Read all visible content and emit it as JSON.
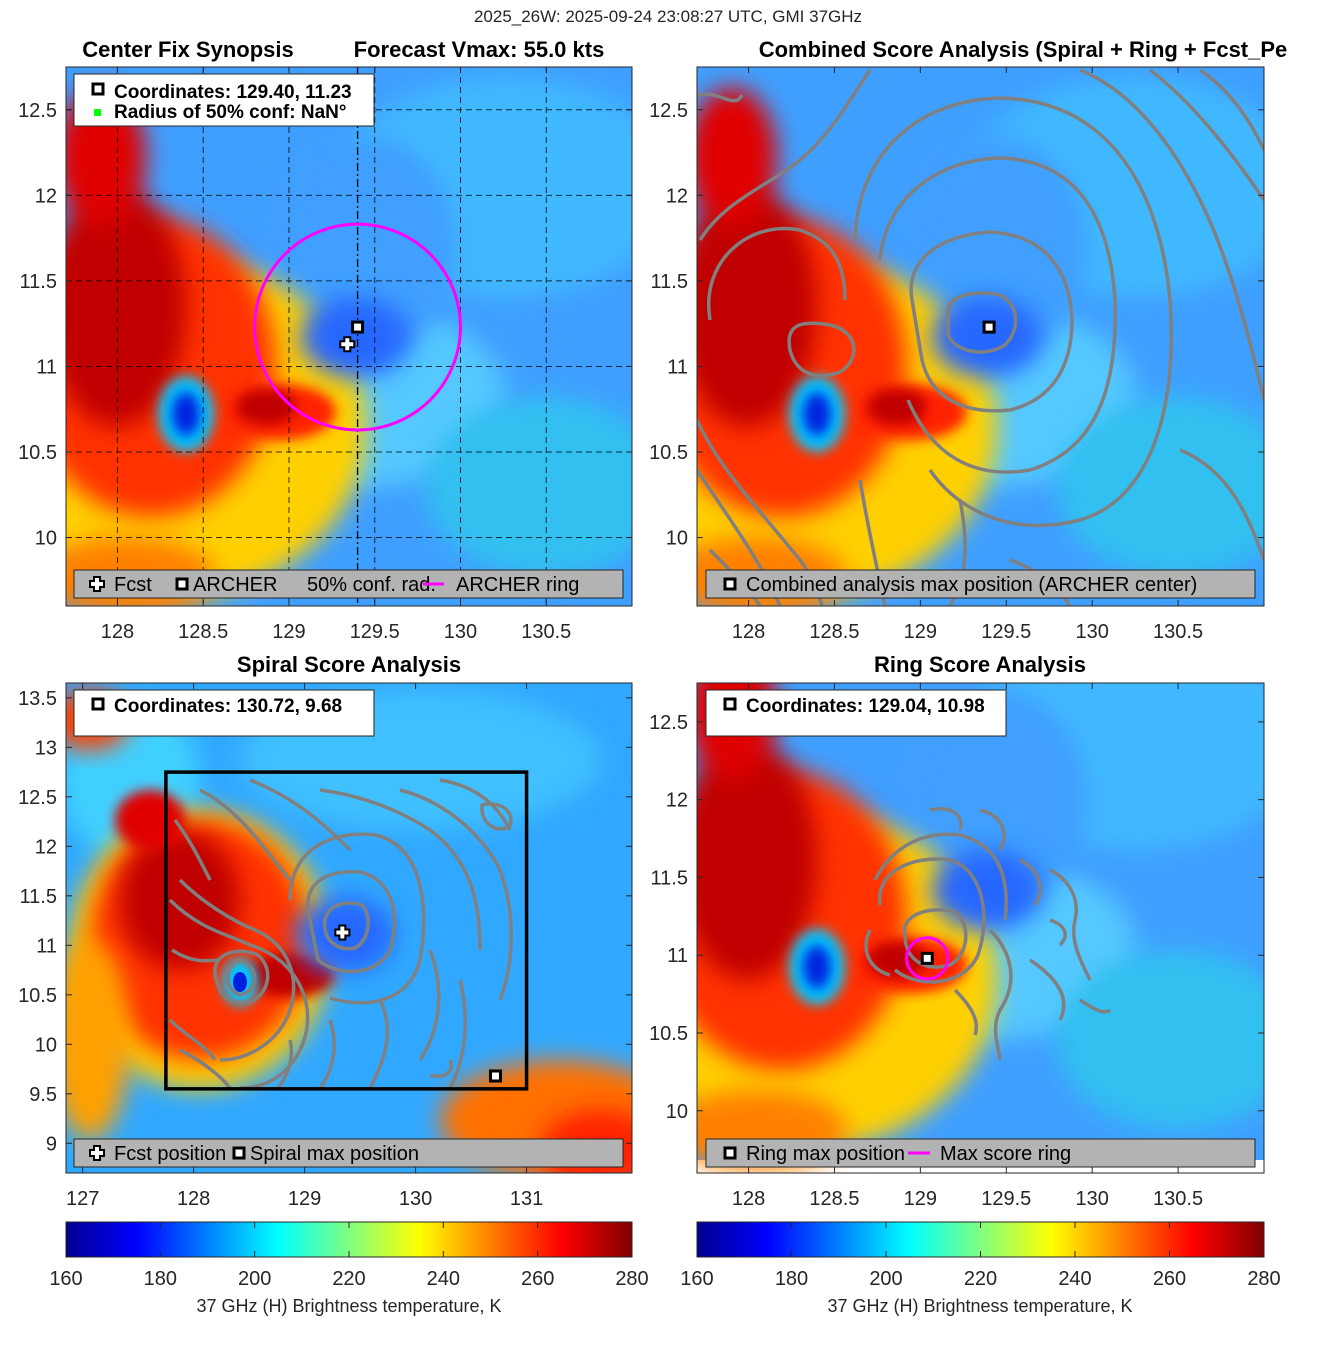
{
  "figure_title": "2025_26W: 2025-09-24 23:08:27 UTC, GMI 37GHz",
  "colors": {
    "fcst_circle": "#ff00ff",
    "conf_marker": "#00ff00",
    "legend_bg": "#b3b3b3",
    "contour": "#808080"
  },
  "panels": {
    "tl": {
      "title_left": "Center Fix Synopsis",
      "title_right": "Forecast Vmax: 55.0 kts",
      "info_line1": "Coordinates: 129.40, 11.23",
      "info_line2": "Radius of 50% conf: NaN°",
      "legend_fcst": "Fcst",
      "legend_archer": "ARCHER",
      "legend_conf": "50% conf. rad.",
      "legend_ring": "ARCHER ring"
    },
    "tr": {
      "title": "Combined Score Analysis (Spiral + Ring + Fcst_Pe",
      "legend": "Combined analysis max position (ARCHER center)"
    },
    "bl": {
      "title": "Spiral Score Analysis",
      "info": "Coordinates: 130.72, 9.68",
      "legend_fcst": "Fcst position",
      "legend_spiral": "Spiral max position"
    },
    "br": {
      "title": "Ring Score Analysis",
      "info": "Coordinates: 129.04, 10.98",
      "legend_ring_pos": "Ring max position",
      "legend_ring": "Max score ring"
    }
  },
  "colorbar": {
    "label": "37 GHz (H) Brightness temperature, K",
    "ticks": [
      "160",
      "180",
      "200",
      "220",
      "240",
      "260",
      "280"
    ]
  },
  "chart_data": [
    {
      "type": "heatmap",
      "title": "Center Fix Synopsis",
      "xlim": [
        127.7,
        131.0
      ],
      "ylim": [
        9.6,
        12.75
      ],
      "xticks": [
        "128",
        "128.5",
        "129",
        "129.5",
        "130",
        "130.5"
      ],
      "yticks": [
        "10",
        "10.5",
        "11",
        "11.5",
        "12",
        "12.5"
      ],
      "colorbar_range": [
        160,
        280
      ],
      "series": [
        {
          "name": "ARCHER",
          "points": [
            [
              129.4,
              11.23
            ]
          ]
        },
        {
          "name": "Fcst",
          "points": [
            [
              129.34,
              11.13
            ]
          ]
        },
        {
          "name": "ARCHER ring",
          "center": [
            129.4,
            11.23
          ],
          "radius_deg": 0.6
        }
      ]
    },
    {
      "type": "heatmap",
      "title": "Combined Score Analysis",
      "xlim": [
        127.7,
        131.0
      ],
      "ylim": [
        9.6,
        12.75
      ],
      "xticks": [
        "128",
        "128.5",
        "129",
        "129.5",
        "130",
        "130.5"
      ],
      "yticks": [
        "10",
        "10.5",
        "11",
        "11.5",
        "12",
        "12.5"
      ],
      "series": [
        {
          "name": "Combined analysis max position",
          "points": [
            [
              129.4,
              11.23
            ]
          ]
        }
      ]
    },
    {
      "type": "heatmap",
      "title": "Spiral Score Analysis",
      "xlim": [
        126.85,
        131.95
      ],
      "ylim": [
        8.7,
        13.65
      ],
      "xticks": [
        "127",
        "128",
        "129",
        "130",
        "131"
      ],
      "yticks": [
        "9",
        "9.5",
        "10",
        "10.5",
        "11",
        "11.5",
        "12",
        "12.5",
        "13",
        "13.5"
      ],
      "series": [
        {
          "name": "Fcst position",
          "points": [
            [
              129.34,
              11.13
            ]
          ]
        },
        {
          "name": "Spiral max position",
          "points": [
            [
              130.72,
              9.68
            ]
          ]
        },
        {
          "name": "Search box",
          "x_range": [
            127.75,
            131.0
          ],
          "y_range": [
            9.55,
            12.75
          ]
        }
      ]
    },
    {
      "type": "heatmap",
      "title": "Ring Score Analysis",
      "xlim": [
        127.7,
        131.0
      ],
      "ylim": [
        9.6,
        12.75
      ],
      "xticks": [
        "128",
        "128.5",
        "129",
        "129.5",
        "130",
        "130.5"
      ],
      "yticks": [
        "10",
        "10.5",
        "11",
        "11.5",
        "12",
        "12.5"
      ],
      "series": [
        {
          "name": "Ring max position",
          "points": [
            [
              129.04,
              10.98
            ]
          ]
        },
        {
          "name": "Max score ring",
          "center": [
            129.04,
            10.98
          ],
          "radius_deg": 0.12
        }
      ]
    }
  ]
}
